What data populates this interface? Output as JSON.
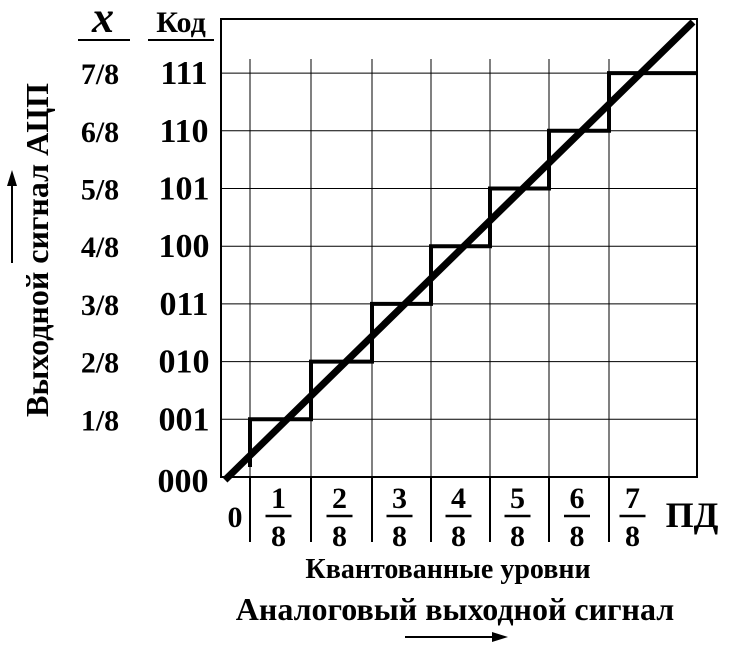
{
  "header": {
    "x_label": "x",
    "code_label": "Код"
  },
  "y_axis_title": "Выходной сигнал АЦП",
  "y_levels": [
    {
      "fraction": "1/8",
      "code": "001"
    },
    {
      "fraction": "2/8",
      "code": "010"
    },
    {
      "fraction": "3/8",
      "code": "011"
    },
    {
      "fraction": "4/8",
      "code": "100"
    },
    {
      "fraction": "5/8",
      "code": "101"
    },
    {
      "fraction": "6/8",
      "code": "110"
    },
    {
      "fraction": "7/8",
      "code": "111"
    }
  ],
  "zero_code": "000",
  "x_origin": "0",
  "x_ticks": [
    {
      "num": "1",
      "den": "8"
    },
    {
      "num": "2",
      "den": "8"
    },
    {
      "num": "3",
      "den": "8"
    },
    {
      "num": "4",
      "den": "8"
    },
    {
      "num": "5",
      "den": "8"
    },
    {
      "num": "6",
      "den": "8"
    },
    {
      "num": "7",
      "den": "8"
    }
  ],
  "x_end_label": "ПД",
  "x_caption_quantized": "Квантованные уровни",
  "x_caption_analog": "Аналоговый выходной сигнал",
  "colors": {
    "ink": "#000000",
    "background": "#ffffff"
  }
}
